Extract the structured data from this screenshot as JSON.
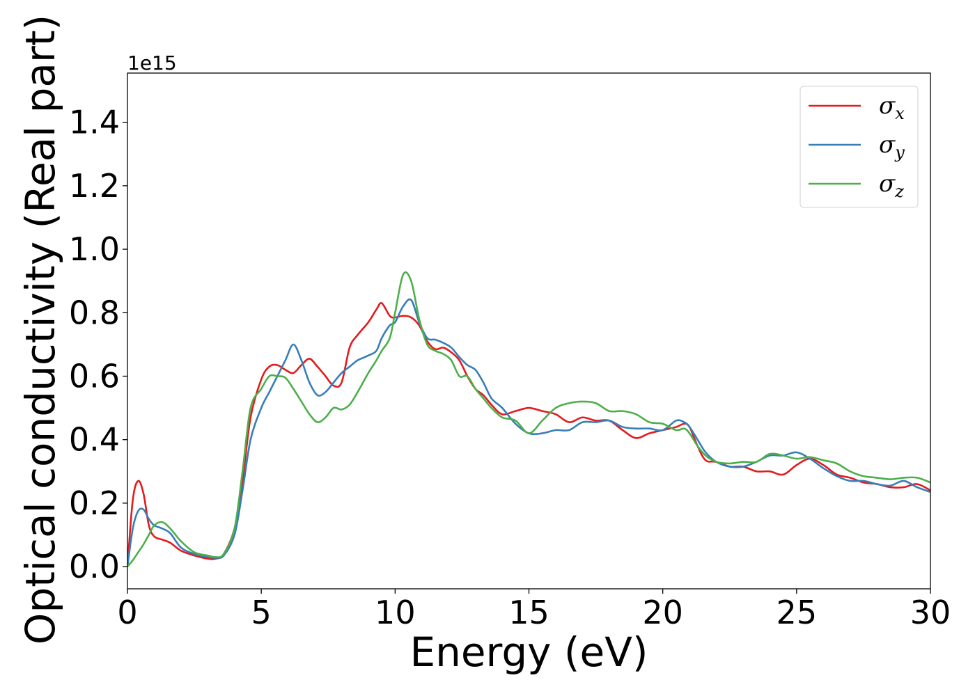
{
  "chart_data": {
    "type": "line",
    "xlabel": "Energy (eV)",
    "ylabel": "Optical conductivity (Real part)",
    "y_offset_label": "1e15",
    "xlim": [
      0,
      30
    ],
    "ylim": [
      -0.07,
      1.555
    ],
    "x_ticks": [
      0,
      5,
      10,
      15,
      20,
      25,
      30
    ],
    "x_tick_labels": [
      "0",
      "5",
      "10",
      "15",
      "20",
      "25",
      "30"
    ],
    "y_ticks": [
      0.0,
      0.2,
      0.4,
      0.6,
      0.8,
      1.0,
      1.2,
      1.4
    ],
    "y_tick_labels": [
      "0.0",
      "0.2",
      "0.4",
      "0.6",
      "0.8",
      "1.0",
      "1.2",
      "1.4"
    ],
    "grid": false,
    "legend_position": "top-right",
    "series": [
      {
        "name": "σ",
        "subscript": "x",
        "color": "#e41a1c",
        "x": [
          0,
          0.2,
          0.4,
          0.6,
          0.8,
          1,
          1.3,
          1.6,
          2,
          2.5,
          3,
          3.3,
          3.6,
          4,
          4.3,
          4.6,
          5,
          5.3,
          5.6,
          5.9,
          6.2,
          6.5,
          6.8,
          7.1,
          7.4,
          7.7,
          8,
          8.3,
          8.6,
          9,
          9.3,
          9.5,
          9.8,
          10,
          10.3,
          10.6,
          10.9,
          11.2,
          11.5,
          11.8,
          12.1,
          12.4,
          12.7,
          13,
          13.3,
          13.6,
          14,
          14.5,
          15,
          15.5,
          16,
          16.5,
          17,
          17.5,
          18,
          18.5,
          19,
          19.5,
          20,
          20.5,
          20.8,
          21,
          21.3,
          21.6,
          22,
          22.5,
          23,
          23.5,
          24,
          24.5,
          25,
          25.5,
          26,
          26.5,
          27,
          27.5,
          28,
          28.5,
          29,
          29.5,
          30
        ],
        "y": [
          0,
          0.21,
          0.27,
          0.23,
          0.13,
          0.095,
          0.085,
          0.075,
          0.05,
          0.035,
          0.025,
          0.025,
          0.04,
          0.12,
          0.27,
          0.47,
          0.59,
          0.63,
          0.635,
          0.62,
          0.61,
          0.635,
          0.655,
          0.63,
          0.6,
          0.57,
          0.58,
          0.69,
          0.73,
          0.77,
          0.81,
          0.83,
          0.79,
          0.785,
          0.79,
          0.785,
          0.76,
          0.71,
          0.685,
          0.69,
          0.675,
          0.65,
          0.6,
          0.56,
          0.54,
          0.51,
          0.48,
          0.49,
          0.5,
          0.49,
          0.48,
          0.455,
          0.47,
          0.46,
          0.46,
          0.43,
          0.405,
          0.42,
          0.43,
          0.44,
          0.45,
          0.44,
          0.38,
          0.335,
          0.33,
          0.315,
          0.315,
          0.3,
          0.3,
          0.29,
          0.32,
          0.34,
          0.32,
          0.29,
          0.28,
          0.265,
          0.26,
          0.25,
          0.25,
          0.26,
          0.24
        ]
      },
      {
        "name": "σ",
        "subscript": "y",
        "color": "#377eb8",
        "x": [
          0,
          0.2,
          0.4,
          0.6,
          0.8,
          1,
          1.3,
          1.6,
          2,
          2.5,
          3,
          3.3,
          3.6,
          4,
          4.3,
          4.6,
          5,
          5.3,
          5.6,
          5.9,
          6.2,
          6.5,
          6.8,
          7.1,
          7.4,
          7.7,
          8,
          8.3,
          8.6,
          9,
          9.3,
          9.5,
          9.8,
          10,
          10.3,
          10.6,
          10.9,
          11.2,
          11.5,
          11.8,
          12.1,
          12.4,
          12.7,
          13,
          13.3,
          13.6,
          14,
          14.5,
          15,
          15.5,
          16,
          16.5,
          17,
          17.5,
          18,
          18.5,
          19,
          19.5,
          20,
          20.5,
          20.8,
          21,
          21.3,
          21.6,
          22,
          22.5,
          23,
          23.5,
          24,
          24.5,
          25,
          25.5,
          26,
          26.5,
          27,
          27.5,
          28,
          28.5,
          29,
          29.5,
          30
        ],
        "y": [
          0,
          0.12,
          0.175,
          0.18,
          0.15,
          0.13,
          0.12,
          0.105,
          0.06,
          0.04,
          0.03,
          0.028,
          0.035,
          0.1,
          0.24,
          0.4,
          0.5,
          0.55,
          0.6,
          0.65,
          0.7,
          0.65,
          0.58,
          0.54,
          0.55,
          0.58,
          0.61,
          0.63,
          0.65,
          0.665,
          0.68,
          0.72,
          0.76,
          0.77,
          0.82,
          0.84,
          0.77,
          0.72,
          0.715,
          0.705,
          0.69,
          0.66,
          0.635,
          0.62,
          0.58,
          0.53,
          0.5,
          0.45,
          0.42,
          0.42,
          0.43,
          0.43,
          0.455,
          0.455,
          0.46,
          0.44,
          0.435,
          0.435,
          0.43,
          0.46,
          0.455,
          0.44,
          0.4,
          0.36,
          0.33,
          0.315,
          0.315,
          0.33,
          0.35,
          0.35,
          0.36,
          0.34,
          0.31,
          0.285,
          0.27,
          0.27,
          0.26,
          0.255,
          0.27,
          0.25,
          0.235
        ]
      },
      {
        "name": "σ",
        "subscript": "z",
        "color": "#4daf4a",
        "x": [
          0,
          0.2,
          0.4,
          0.6,
          0.8,
          1,
          1.3,
          1.6,
          2,
          2.5,
          3,
          3.3,
          3.6,
          4,
          4.3,
          4.6,
          5,
          5.3,
          5.6,
          5.9,
          6.2,
          6.5,
          6.8,
          7.1,
          7.4,
          7.7,
          8,
          8.3,
          8.6,
          9,
          9.3,
          9.5,
          9.8,
          10,
          10.3,
          10.6,
          10.9,
          11.2,
          11.5,
          11.8,
          12.1,
          12.4,
          12.7,
          13,
          13.3,
          13.6,
          14,
          14.5,
          15,
          15.5,
          16,
          16.5,
          17,
          17.5,
          18,
          18.5,
          19,
          19.5,
          20,
          20.5,
          20.8,
          21,
          21.3,
          21.6,
          22,
          22.5,
          23,
          23.5,
          24,
          24.5,
          25,
          25.5,
          26,
          26.5,
          27,
          27.5,
          28,
          28.5,
          29,
          29.5,
          30
        ],
        "y": [
          0,
          0.02,
          0.045,
          0.07,
          0.1,
          0.13,
          0.14,
          0.12,
          0.08,
          0.045,
          0.035,
          0.03,
          0.04,
          0.12,
          0.3,
          0.5,
          0.56,
          0.6,
          0.6,
          0.595,
          0.56,
          0.52,
          0.48,
          0.455,
          0.47,
          0.5,
          0.495,
          0.51,
          0.55,
          0.61,
          0.65,
          0.68,
          0.72,
          0.8,
          0.92,
          0.9,
          0.78,
          0.7,
          0.68,
          0.67,
          0.65,
          0.6,
          0.6,
          0.56,
          0.53,
          0.5,
          0.47,
          0.46,
          0.42,
          0.46,
          0.5,
          0.515,
          0.52,
          0.515,
          0.49,
          0.49,
          0.48,
          0.455,
          0.45,
          0.43,
          0.435,
          0.42,
          0.38,
          0.35,
          0.33,
          0.325,
          0.33,
          0.33,
          0.355,
          0.35,
          0.34,
          0.345,
          0.335,
          0.325,
          0.3,
          0.285,
          0.28,
          0.275,
          0.28,
          0.28,
          0.265
        ]
      }
    ]
  }
}
